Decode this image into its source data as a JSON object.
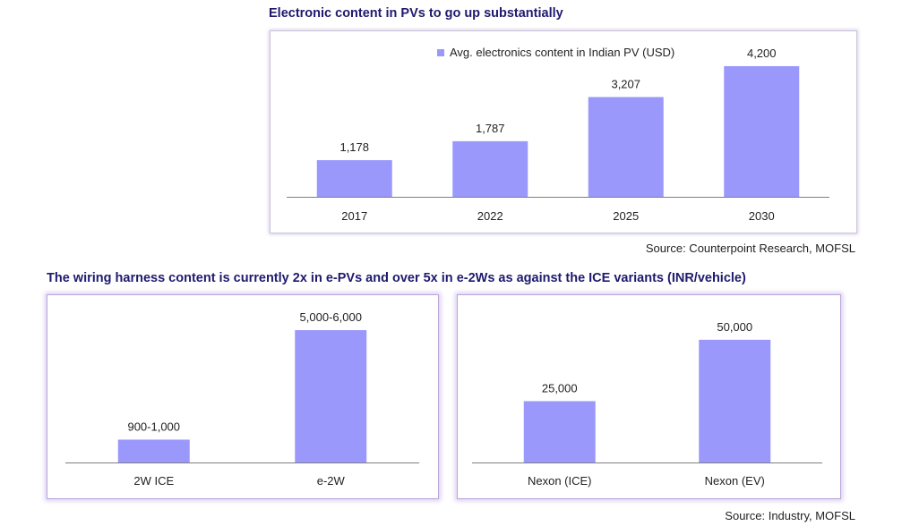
{
  "chart_data": [
    {
      "type": "bar",
      "title": "Electronic content in PVs to go up substantially",
      "categories": [
        "2017",
        "2022",
        "2025",
        "2030"
      ],
      "series": [
        {
          "name": "Avg. electronics content in Indian PV (USD)",
          "values": [
            1178,
            1787,
            3207,
            4200
          ]
        }
      ],
      "data_labels": [
        "1,178",
        "1,787",
        "3,207",
        "4,200"
      ],
      "ylim": [
        0,
        4400
      ],
      "legend": "top",
      "grid": false,
      "source": "Source: Counterpoint Research, MOFSL"
    },
    {
      "type": "bar",
      "title": "The wiring harness content is currently 2x in e-PVs and over 5x in e-2Ws as against the ICE variants (INR/vehicle)",
      "categories": [
        "2W ICE",
        "e-2W"
      ],
      "series": [
        {
          "values": [
            950,
            5500
          ]
        }
      ],
      "data_labels": [
        "900-1,000",
        "5,000-6,000"
      ],
      "ylim": [
        0,
        5800
      ],
      "grid": false
    },
    {
      "type": "bar",
      "categories": [
        "Nexon (ICE)",
        "Nexon (EV)"
      ],
      "series": [
        {
          "values": [
            25000,
            50000
          ]
        }
      ],
      "data_labels": [
        "25,000",
        "50,000"
      ],
      "ylim": [
        0,
        52500
      ],
      "grid": false,
      "source": "Source: Industry, MOFSL"
    }
  ],
  "colors": {
    "bar": "#9b98fb",
    "title": "#1f1a6e",
    "axis": "#7f7f7f"
  }
}
